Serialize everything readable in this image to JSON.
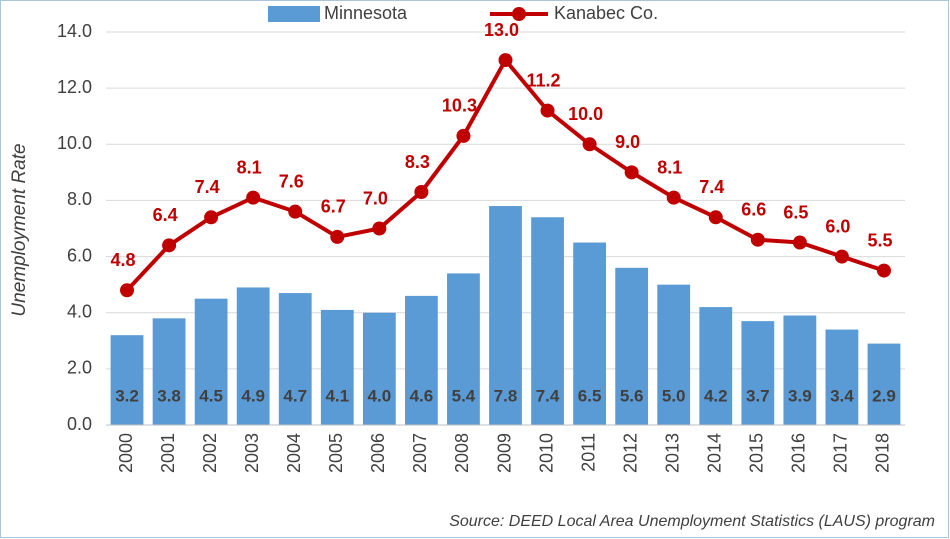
{
  "chart_data": {
    "type": "bar",
    "y_label": "Unemployment Rate",
    "source": "Source: DEED Local Area Unemployment Statistics (LAUS) program",
    "categories": [
      "2000",
      "2001",
      "2002",
      "2003",
      "2004",
      "2005",
      "2006",
      "2007",
      "2008",
      "2009",
      "2010",
      "2011",
      "2012",
      "2013",
      "2014",
      "2015",
      "2016",
      "2017",
      "2018"
    ],
    "series": [
      {
        "name": "Minnesota",
        "type": "bar",
        "color": "#5b9bd5",
        "values": [
          3.2,
          3.8,
          4.5,
          4.9,
          4.7,
          4.1,
          4.0,
          4.6,
          5.4,
          7.8,
          7.4,
          6.5,
          5.6,
          5.0,
          4.2,
          3.7,
          3.9,
          3.4,
          2.9
        ],
        "value_labels": [
          "3.2",
          "3.8",
          "4.5",
          "4.9",
          "4.7",
          "4.1",
          "4.0",
          "4.6",
          "5.4",
          "7.8",
          "7.4",
          "6.5",
          "5.6",
          "5.0",
          "4.2",
          "3.7",
          "3.9",
          "3.4",
          "2.9"
        ]
      },
      {
        "name": "Kanabec Co.",
        "type": "line",
        "color": "#c00000",
        "values": [
          4.8,
          6.4,
          7.4,
          8.1,
          7.6,
          6.7,
          7.0,
          8.3,
          10.3,
          13.0,
          11.2,
          10.0,
          9.0,
          8.1,
          7.4,
          6.6,
          6.5,
          6.0,
          5.5
        ],
        "value_labels": [
          "4.8",
          "6.4",
          "7.4",
          "8.1",
          "7.6",
          "6.7",
          "7.0",
          "8.3",
          "10.3",
          "13.0",
          "11.2",
          "10.0",
          "9.0",
          "8.1",
          "7.4",
          "6.6",
          "6.5",
          "6.0",
          "5.5"
        ]
      }
    ],
    "ylim": [
      0,
      14
    ],
    "yticks": [
      {
        "value": 0,
        "label": "0.0"
      },
      {
        "value": 2,
        "label": "2.0"
      },
      {
        "value": 4,
        "label": "4.0"
      },
      {
        "value": 6,
        "label": "6.0"
      },
      {
        "value": 8,
        "label": "8.0"
      },
      {
        "value": 10,
        "label": "10.0"
      },
      {
        "value": 12,
        "label": "12.0"
      },
      {
        "value": 14,
        "label": "14.0"
      }
    ],
    "grid": true,
    "legend": "top"
  }
}
